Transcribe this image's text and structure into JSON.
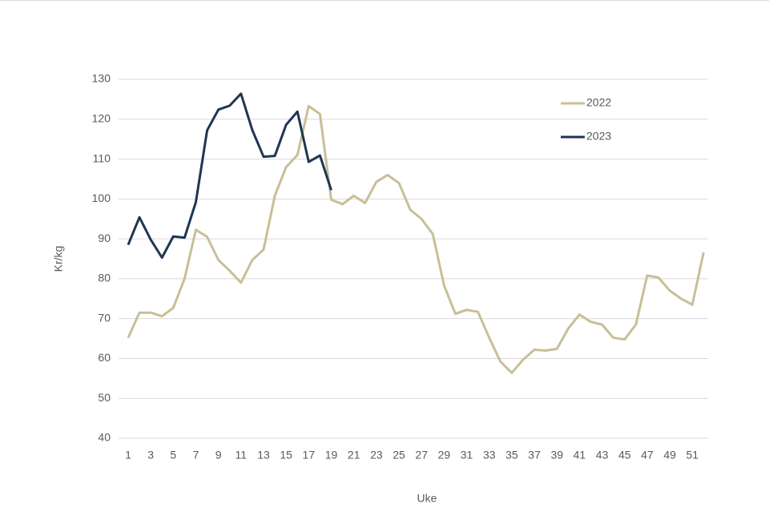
{
  "chart_data": {
    "type": "line",
    "x_label": "Uke",
    "y_label": "Kr/kg",
    "x": [
      1,
      2,
      3,
      4,
      5,
      6,
      7,
      8,
      9,
      10,
      11,
      12,
      13,
      14,
      15,
      16,
      17,
      18,
      19,
      20,
      21,
      22,
      23,
      24,
      25,
      26,
      27,
      28,
      29,
      30,
      31,
      32,
      33,
      34,
      35,
      36,
      37,
      38,
      39,
      40,
      41,
      42,
      43,
      44,
      45,
      46,
      47,
      48,
      49,
      50,
      51,
      52
    ],
    "series": [
      {
        "name": "2022",
        "color": "#c8bf96",
        "values": [
          65.2,
          71.5,
          71.5,
          70.6,
          72.7,
          80,
          92.3,
          90.5,
          84.7,
          82,
          79,
          84.7,
          87.3,
          100.8,
          108,
          111,
          123.3,
          121.3,
          99.8,
          98.7,
          100.8,
          99,
          104.3,
          106,
          104,
          97.3,
          95,
          91.2,
          78.3,
          71.2,
          72.2,
          71.7,
          65.2,
          59.2,
          56.4,
          59.7,
          62.2,
          62,
          62.4,
          67.5,
          71,
          69.2,
          68.5,
          65.2,
          64.8,
          68.5,
          80.8,
          80.3,
          77,
          75,
          73.5,
          86.6
        ]
      },
      {
        "name": "2023",
        "color": "#1f3553",
        "values": [
          88.5,
          95.4,
          89.8,
          85.3,
          90.6,
          90.3,
          99.2,
          117.2,
          122.4,
          123.4,
          126.4,
          117.3,
          110.6,
          110.8,
          118.6,
          121.9,
          109.3,
          110.9,
          102.2,
          null,
          null,
          null,
          null,
          null,
          null,
          null,
          null,
          null,
          null,
          null,
          null,
          null,
          null,
          null,
          null,
          null,
          null,
          null,
          null,
          null,
          null,
          null,
          null,
          null,
          null,
          null,
          null,
          null,
          null,
          null,
          null,
          null
        ]
      }
    ],
    "xlim": [
      0.15,
      52.4
    ],
    "xticks": [
      1,
      3,
      5,
      7,
      9,
      11,
      13,
      15,
      17,
      19,
      21,
      23,
      25,
      27,
      29,
      31,
      33,
      35,
      37,
      39,
      41,
      43,
      45,
      47,
      49,
      51
    ],
    "ylim": [
      40,
      130
    ],
    "yticks": [
      40,
      50,
      60,
      70,
      80,
      90,
      100,
      110,
      120,
      130
    ],
    "grid": true,
    "legend": "top-right"
  }
}
